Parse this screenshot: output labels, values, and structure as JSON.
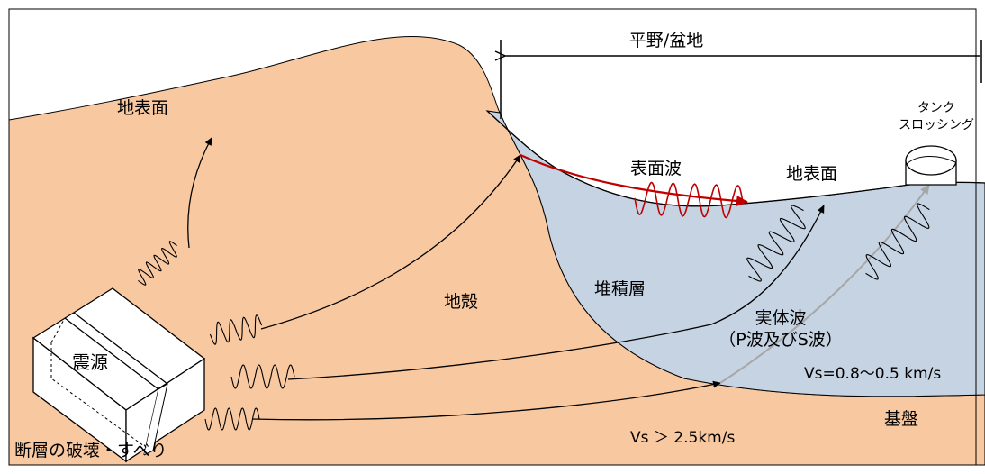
{
  "labels": {
    "plain_basin": "平野/盆地",
    "ground_surface_left": "地表面",
    "ground_surface_right": "地表面",
    "tank_line1": "タンク",
    "tank_line2": "スロッシング",
    "surface_wave": "表面波",
    "crust": "地殻",
    "sediment": "堆積層",
    "body_wave_line1": "実体波",
    "body_wave_line2": "（P波及びS波）",
    "vs_sediment": "Vs=0.8～0.5 km/s",
    "vs_bedrock": "Vs ＞ 2.5km/s",
    "bedrock": "基盤",
    "source": "震源",
    "fault": "断層の破壊・すべり"
  },
  "colors": {
    "crust": "#f8c8a0",
    "sediment": "#c6d3e3",
    "surface_wave": "#c00000",
    "ray_gray": "#a6a6a6",
    "stroke": "#000000"
  }
}
